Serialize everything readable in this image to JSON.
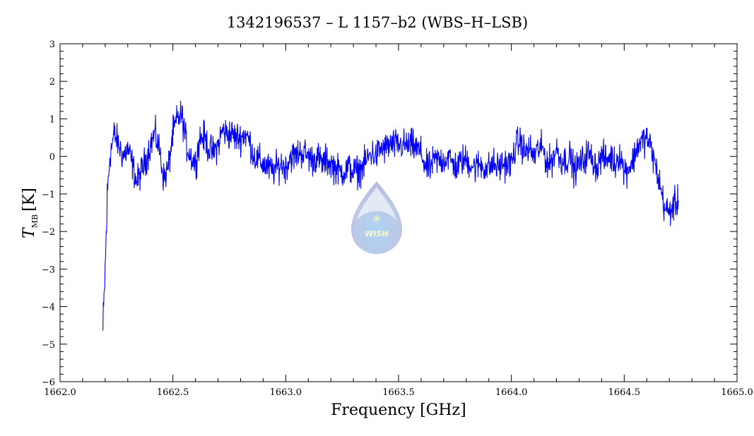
{
  "chart_data": {
    "type": "line",
    "title": "1342196537 – L 1157–b2 (WBS–H–LSB)",
    "xlabel": "Frequency [GHz]",
    "ylabel": {
      "symbol": "T",
      "subscript": "MB",
      "unit": "[K]"
    },
    "xlim": [
      1662.0,
      1665.0
    ],
    "ylim": [
      -6,
      3
    ],
    "xticks": [
      "1662.0",
      "1662.5",
      "1663.0",
      "1663.5",
      "1664.0",
      "1664.5",
      "1665.0"
    ],
    "yticks": [
      "3",
      "2",
      "1",
      "0",
      "−1",
      "−2",
      "−3",
      "−4",
      "−5",
      "−6"
    ],
    "grid": false,
    "line_color": "#0000ff",
    "watermark": "WISH",
    "series": [
      {
        "x": [
          1662.19,
          1662.2,
          1662.21,
          1662.22,
          1662.24,
          1662.26,
          1662.28,
          1662.3,
          1662.32,
          1662.34,
          1662.36,
          1662.38,
          1662.4,
          1662.42,
          1662.44,
          1662.46,
          1662.48,
          1662.5,
          1662.52,
          1662.54,
          1662.56,
          1662.58,
          1662.6,
          1662.62,
          1662.64,
          1662.66,
          1662.68,
          1662.7,
          1662.72,
          1662.74,
          1662.76,
          1662.78,
          1662.8,
          1662.82,
          1662.84,
          1662.86,
          1662.88,
          1662.9,
          1662.92,
          1662.94,
          1662.96,
          1662.98,
          1663.0,
          1663.02,
          1663.04,
          1663.06,
          1663.08,
          1663.1,
          1663.12,
          1663.14,
          1663.16,
          1663.18,
          1663.2,
          1663.22,
          1663.24,
          1663.26,
          1663.28,
          1663.3,
          1663.32,
          1663.34,
          1663.36,
          1663.38,
          1663.4,
          1663.42,
          1663.44,
          1663.46,
          1663.48,
          1663.5,
          1663.52,
          1663.54,
          1663.56,
          1663.58,
          1663.6,
          1663.62,
          1663.64,
          1663.66,
          1663.68,
          1663.7,
          1663.72,
          1663.74,
          1663.76,
          1663.78,
          1663.8,
          1663.82,
          1663.84,
          1663.86,
          1663.88,
          1663.9,
          1663.92,
          1663.94,
          1663.96,
          1663.98,
          1664.0,
          1664.02,
          1664.04,
          1664.06,
          1664.08,
          1664.1,
          1664.12,
          1664.14,
          1664.16,
          1664.18,
          1664.2,
          1664.22,
          1664.24,
          1664.26,
          1664.28,
          1664.3,
          1664.32,
          1664.34,
          1664.36,
          1664.38,
          1664.4,
          1664.42,
          1664.44,
          1664.46,
          1664.48,
          1664.5,
          1664.52,
          1664.54,
          1664.56,
          1664.58,
          1664.6,
          1664.62,
          1664.64,
          1664.66,
          1664.68,
          1664.7,
          1664.72,
          1664.74
        ],
        "y": [
          -4.7,
          -3.0,
          -1.0,
          0.0,
          0.6,
          0.3,
          0.0,
          0.2,
          -0.2,
          -0.7,
          -0.4,
          -0.1,
          0.3,
          0.6,
          0.2,
          -0.6,
          -0.3,
          0.6,
          1.0,
          1.1,
          0.3,
          0.0,
          -0.2,
          0.5,
          0.5,
          0.2,
          0.1,
          0.3,
          0.7,
          0.6,
          0.6,
          0.5,
          0.5,
          0.6,
          0.4,
          0.0,
          -0.1,
          -0.2,
          -0.3,
          -0.4,
          -0.3,
          -0.2,
          -0.3,
          0.0,
          0.0,
          0.1,
          0.1,
          0.0,
          -0.1,
          0.0,
          -0.2,
          -0.1,
          -0.2,
          -0.3,
          -0.4,
          -0.4,
          -0.3,
          -0.4,
          -0.4,
          -0.3,
          -0.1,
          0.1,
          0.0,
          0.2,
          0.2,
          0.3,
          0.3,
          0.3,
          0.3,
          0.3,
          0.3,
          0.2,
          0.1,
          -0.3,
          -0.3,
          -0.1,
          -0.1,
          -0.1,
          0.0,
          -0.2,
          -0.3,
          -0.1,
          -0.1,
          -0.2,
          -0.3,
          -0.2,
          -0.3,
          -0.3,
          -0.2,
          -0.3,
          -0.2,
          -0.2,
          -0.2,
          0.3,
          0.4,
          0.1,
          0.2,
          0.0,
          0.2,
          0.2,
          -0.2,
          -0.1,
          0.2,
          -0.1,
          -0.1,
          0.0,
          -0.4,
          -0.2,
          -0.1,
          0.1,
          -0.1,
          -0.3,
          0.0,
          -0.1,
          0.0,
          -0.2,
          0.1,
          -0.4,
          -0.3,
          -0.1,
          0.3,
          0.4,
          0.5,
          0.2,
          -0.3,
          -0.8,
          -1.4,
          -1.5,
          -1.3,
          -1.2
        ]
      }
    ]
  }
}
